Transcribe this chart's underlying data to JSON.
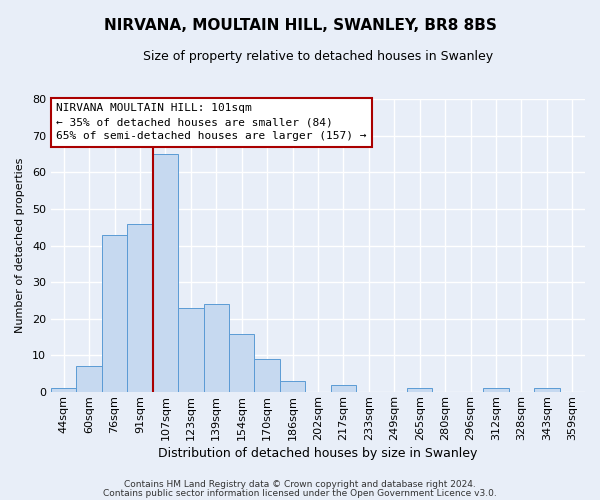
{
  "title": "NIRVANA, MOULTAIN HILL, SWANLEY, BR8 8BS",
  "subtitle": "Size of property relative to detached houses in Swanley",
  "xlabel": "Distribution of detached houses by size in Swanley",
  "ylabel": "Number of detached properties",
  "bar_labels": [
    "44sqm",
    "60sqm",
    "76sqm",
    "91sqm",
    "107sqm",
    "123sqm",
    "139sqm",
    "154sqm",
    "170sqm",
    "186sqm",
    "202sqm",
    "217sqm",
    "233sqm",
    "249sqm",
    "265sqm",
    "280sqm",
    "296sqm",
    "312sqm",
    "328sqm",
    "343sqm",
    "359sqm"
  ],
  "bar_values": [
    1,
    7,
    43,
    46,
    65,
    23,
    24,
    16,
    9,
    3,
    0,
    2,
    0,
    0,
    1,
    0,
    0,
    1,
    0,
    1,
    0
  ],
  "bar_color": "#c6d9f0",
  "bar_edge_color": "#5b9bd5",
  "vline_x_index": 3.5,
  "vline_color": "#aa0000",
  "ylim": [
    0,
    80
  ],
  "yticks": [
    0,
    10,
    20,
    30,
    40,
    50,
    60,
    70,
    80
  ],
  "annotation_title": "NIRVANA MOULTAIN HILL: 101sqm",
  "annotation_line1": "← 35% of detached houses are smaller (84)",
  "annotation_line2": "65% of semi-detached houses are larger (157) →",
  "annotation_box_facecolor": "#ffffff",
  "annotation_box_edgecolor": "#aa0000",
  "footer_line1": "Contains HM Land Registry data © Crown copyright and database right 2024.",
  "footer_line2": "Contains public sector information licensed under the Open Government Licence v3.0.",
  "background_color": "#e8eef8",
  "grid_color": "#ffffff",
  "title_fontsize": 11,
  "subtitle_fontsize": 9,
  "xlabel_fontsize": 9,
  "ylabel_fontsize": 8,
  "tick_fontsize": 8,
  "annotation_fontsize": 8,
  "footer_fontsize": 6.5
}
